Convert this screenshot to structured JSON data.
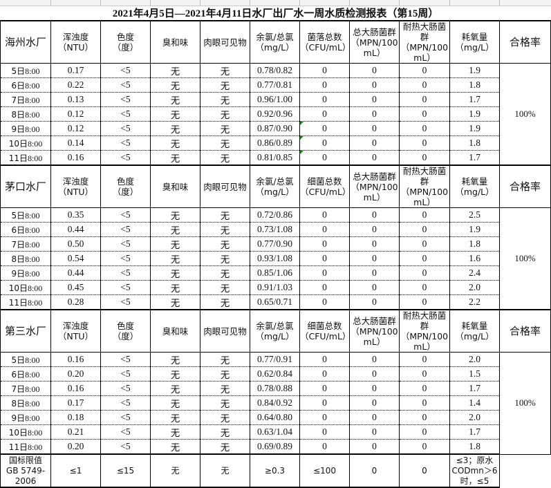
{
  "title": "2021年4月5日—2021年4月11日水厂出厂水一周水质检测报表（第15周）",
  "headers": {
    "turbidity": [
      "浑浊度",
      "（NTU）"
    ],
    "color": [
      "色度",
      "（度）"
    ],
    "odor": "臭和味",
    "visible": "肉眼可见物",
    "chlorine": [
      "余氯/总氯",
      "（mg/L）"
    ],
    "bacteria_a": [
      "菌落总数",
      "（CFU/mL）"
    ],
    "bacteria_b": [
      "细菌总数",
      "（CFU/mL）"
    ],
    "coliform": [
      "总大肠菌群",
      "（MPN/100",
      "mL）"
    ],
    "thermo": [
      "耐热大肠菌",
      "群",
      "（MPN/100",
      "mL）"
    ],
    "oxygen": [
      "耗氧量",
      "（mg/L）"
    ],
    "rate": "合格率"
  },
  "sections": [
    {
      "plant": "海州水厂",
      "bacteria_key": "bacteria_a",
      "rate": "100%",
      "rows": [
        {
          "day": "5日",
          "time": "8:00",
          "turb": "0.17",
          "color": "<5",
          "odor": "无",
          "visible": "无",
          "cl": "0.78/0.82",
          "bac": "0",
          "col": "0",
          "thermo": "0",
          "oxy": "1.9"
        },
        {
          "day": "6日",
          "time": "8:00",
          "turb": "0.22",
          "color": "<5",
          "odor": "无",
          "visible": "无",
          "cl": "0.77/0.81",
          "bac": "0",
          "col": "0",
          "thermo": "0",
          "oxy": "1.8"
        },
        {
          "day": "7日",
          "time": "8:00",
          "turb": "0.13",
          "color": "<5",
          "odor": "无",
          "visible": "无",
          "cl": "0.96/1.00",
          "bac": "0",
          "col": "0",
          "thermo": "0",
          "oxy": "1.7"
        },
        {
          "day": "8日",
          "time": "8:00",
          "turb": "0.12",
          "color": "<5",
          "odor": "无",
          "visible": "无",
          "cl": "0.92/0.96",
          "bac": "0",
          "col": "0",
          "thermo": "0",
          "oxy": "1.9"
        },
        {
          "day": "9日",
          "time": "8:00",
          "turb": "0.12",
          "color": "<5",
          "odor": "无",
          "visible": "无",
          "cl": "0.87/0.90",
          "bac": "0",
          "col": "0",
          "thermo": "0",
          "oxy": "1.9",
          "mark": true
        },
        {
          "day": "10日",
          "time": "8:00",
          "turb": "0.14",
          "color": "<5",
          "odor": "无",
          "visible": "无",
          "cl": "0.86/0.89",
          "bac": "0",
          "col": "0",
          "thermo": "0",
          "oxy": "1.8",
          "mark": true
        },
        {
          "day": "11日",
          "time": "8:00",
          "turb": "0.16",
          "color": "<5",
          "odor": "无",
          "visible": "无",
          "cl": "0.81/0.85",
          "bac": "0",
          "col": "0",
          "thermo": "0",
          "oxy": "1.7",
          "mark": true
        }
      ]
    },
    {
      "plant": "茅口水厂",
      "bacteria_key": "bacteria_b",
      "rate": "100%",
      "rows": [
        {
          "day": "5日",
          "time": "8:00",
          "turb": "0.35",
          "color": "<5",
          "odor": "无",
          "visible": "无",
          "cl": "0.72/0.86",
          "bac": "0",
          "col": "0",
          "thermo": "0",
          "oxy": "2.5"
        },
        {
          "day": "6日",
          "time": "8:00",
          "turb": "0.44",
          "color": "<5",
          "odor": "无",
          "visible": "无",
          "cl": "0.73/1.08",
          "bac": "0",
          "col": "0",
          "thermo": "0",
          "oxy": "1.9"
        },
        {
          "day": "7日",
          "time": "8:00",
          "turb": "0.50",
          "color": "<5",
          "odor": "无",
          "visible": "无",
          "cl": "0.77/0.90",
          "bac": "0",
          "col": "0",
          "thermo": "0",
          "oxy": "1.8"
        },
        {
          "day": "8日",
          "time": "8:00",
          "turb": "0.54",
          "color": "<5",
          "odor": "无",
          "visible": "无",
          "cl": "0.93/1.08",
          "bac": "0",
          "col": "0",
          "thermo": "0",
          "oxy": "1.6"
        },
        {
          "day": "9日",
          "time": "8:00",
          "turb": "0.44",
          "color": "<5",
          "odor": "无",
          "visible": "无",
          "cl": "0.85/1.06",
          "bac": "0",
          "col": "0",
          "thermo": "0",
          "oxy": "2.4"
        },
        {
          "day": "10日",
          "time": "8:00",
          "turb": "0.45",
          "color": "<5",
          "odor": "无",
          "visible": "无",
          "cl": "0.91/1.03",
          "bac": "0",
          "col": "0",
          "thermo": "0",
          "oxy": "2.0"
        },
        {
          "day": "11日",
          "time": "8:00",
          "turb": "0.28",
          "color": "<5",
          "odor": "无",
          "visible": "无",
          "cl": "0.65/0.71",
          "bac": "0",
          "col": "0",
          "thermo": "0",
          "oxy": "2.2"
        }
      ]
    },
    {
      "plant": "第三水厂",
      "bacteria_key": "bacteria_b",
      "rate": "100%",
      "rows": [
        {
          "day": "5日",
          "time": "8:00",
          "turb": "0.16",
          "color": "<5",
          "odor": "无",
          "visible": "无",
          "cl": "0.77/0.91",
          "bac": "0",
          "col": "0",
          "thermo": "0",
          "oxy": "2.0"
        },
        {
          "day": "6日",
          "time": "8:00",
          "turb": "0.20",
          "color": "<5",
          "odor": "无",
          "visible": "无",
          "cl": "0.62/0.84",
          "bac": "0",
          "col": "0",
          "thermo": "0",
          "oxy": "1.5"
        },
        {
          "day": "7日",
          "time": "8:00",
          "turb": "0.16",
          "color": "<5",
          "odor": "无",
          "visible": "无",
          "cl": "0.78/0.88",
          "bac": "0",
          "col": "0",
          "thermo": "0",
          "oxy": "1.7"
        },
        {
          "day": "8日",
          "time": "8:00",
          "turb": "0.17",
          "color": "<5",
          "odor": "无",
          "visible": "无",
          "cl": "0.84/0.92",
          "bac": "0",
          "col": "0",
          "thermo": "0",
          "oxy": "1.4"
        },
        {
          "day": "9日",
          "time": "8:00",
          "turb": "0.18",
          "color": "<5",
          "odor": "无",
          "visible": "无",
          "cl": "0.64/0.80",
          "bac": "0",
          "col": "0",
          "thermo": "0",
          "oxy": "2.0"
        },
        {
          "day": "10日",
          "time": "8:00",
          "turb": "0.21",
          "color": "<5",
          "odor": "无",
          "visible": "无",
          "cl": "0.63/1.04",
          "bac": "0",
          "col": "0",
          "thermo": "0",
          "oxy": "1.7"
        },
        {
          "day": "11日",
          "time": "8:00",
          "turb": "0.20",
          "color": "<5",
          "odor": "无",
          "visible": "无",
          "cl": "0.69/0.89",
          "bac": "0",
          "col": "0",
          "thermo": "0",
          "oxy": "1.8"
        }
      ]
    }
  ],
  "footer": {
    "label": [
      "国标限值",
      "GB 5749-",
      "2006"
    ],
    "turb": "≤1",
    "color": "≤15",
    "odor": "无",
    "visible": "无",
    "cl": "≥0.3",
    "bac": "≤100",
    "col": "0",
    "thermo": "0",
    "oxy": [
      "≤3；原水",
      "CODmn＞6",
      "时，≤5"
    ]
  },
  "colors": {
    "border": "#000000",
    "cell_marker": "#1a7f1a"
  }
}
